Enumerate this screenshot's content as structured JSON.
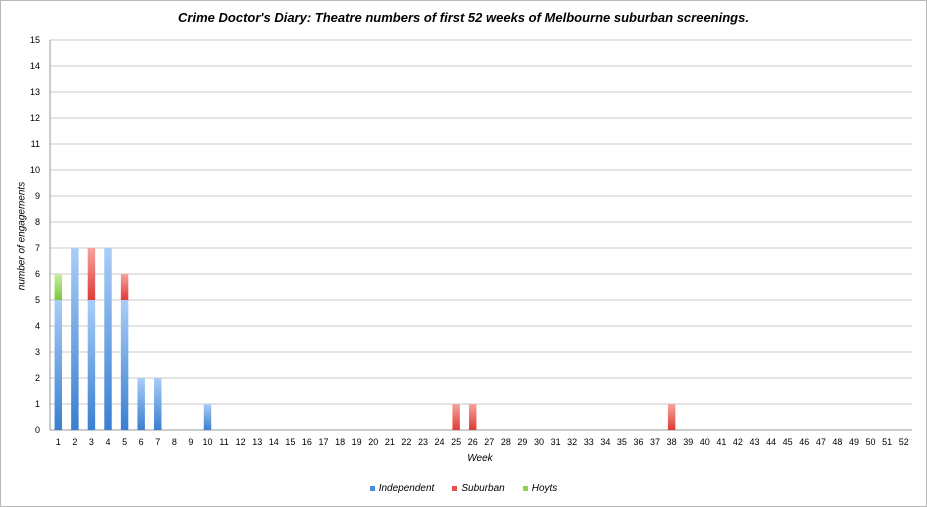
{
  "chart_data": {
    "type": "bar",
    "stacked": true,
    "title": "Crime Doctor's Diary: Theatre numbers of first 52 weeks of Melbourne suburban screenings.",
    "xlabel": "Week",
    "ylabel": "number of engagements",
    "ylim": [
      0,
      15
    ],
    "yticks": [
      "0",
      "1",
      "2",
      "3",
      "4",
      "5",
      "6",
      "7",
      "8",
      "9",
      "10",
      "11",
      "12",
      "13",
      "14",
      "15"
    ],
    "grid": true,
    "legend_position": "bottom",
    "categories": [
      "1",
      "2",
      "3",
      "4",
      "5",
      "6",
      "7",
      "8",
      "9",
      "10",
      "11",
      "12",
      "13",
      "14",
      "15",
      "16",
      "17",
      "18",
      "19",
      "20",
      "21",
      "22",
      "23",
      "24",
      "25",
      "26",
      "27",
      "28",
      "29",
      "30",
      "31",
      "32",
      "33",
      "34",
      "35",
      "36",
      "37",
      "38",
      "39",
      "40",
      "41",
      "42",
      "43",
      "44",
      "45",
      "46",
      "47",
      "48",
      "49",
      "50",
      "51",
      "52"
    ],
    "series": [
      {
        "name": "Independent",
        "color": "#4a8fdc",
        "values": [
          5,
          7,
          5,
          7,
          5,
          2,
          2,
          0,
          0,
          1,
          0,
          0,
          0,
          0,
          0,
          0,
          0,
          0,
          0,
          0,
          0,
          0,
          0,
          0,
          0,
          0,
          0,
          0,
          0,
          0,
          0,
          0,
          0,
          0,
          0,
          0,
          0,
          0,
          0,
          0,
          0,
          0,
          0,
          0,
          0,
          0,
          0,
          0,
          0,
          0,
          0,
          0
        ]
      },
      {
        "name": "Suburban",
        "color": "#e8504a",
        "values": [
          0,
          0,
          2,
          0,
          1,
          0,
          0,
          0,
          0,
          0,
          0,
          0,
          0,
          0,
          0,
          0,
          0,
          0,
          0,
          0,
          0,
          0,
          0,
          0,
          1,
          1,
          0,
          0,
          0,
          0,
          0,
          0,
          0,
          0,
          0,
          0,
          0,
          1,
          0,
          0,
          0,
          0,
          0,
          0,
          0,
          0,
          0,
          0,
          0,
          0,
          0,
          0
        ]
      },
      {
        "name": "Hoyts",
        "color": "#8fd14f",
        "values": [
          1,
          0,
          0,
          0,
          0,
          0,
          0,
          0,
          0,
          0,
          0,
          0,
          0,
          0,
          0,
          0,
          0,
          0,
          0,
          0,
          0,
          0,
          0,
          0,
          0,
          0,
          0,
          0,
          0,
          0,
          0,
          0,
          0,
          0,
          0,
          0,
          0,
          0,
          0,
          0,
          0,
          0,
          0,
          0,
          0,
          0,
          0,
          0,
          0,
          0,
          0,
          0
        ]
      }
    ]
  }
}
